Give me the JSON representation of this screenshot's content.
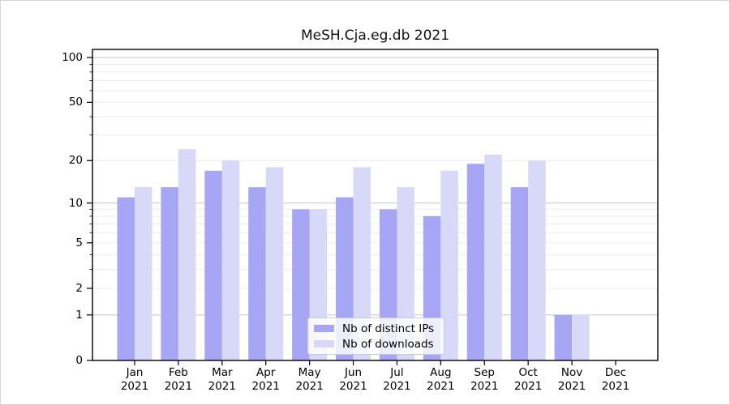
{
  "window": {
    "background": "#ffffff",
    "border_color": "#d6d6d6"
  },
  "chart_data": {
    "type": "bar",
    "title": "MeSH.Cja.eg.db 2021",
    "year_label": "2021",
    "categories": [
      "Jan",
      "Feb",
      "Mar",
      "Apr",
      "May",
      "Jun",
      "Jul",
      "Aug",
      "Sep",
      "Oct",
      "Nov",
      "Dec"
    ],
    "series": [
      {
        "name": "Nb of distinct IPs",
        "color": "#a6a6f4",
        "values": [
          11,
          13,
          17,
          13,
          9,
          11,
          9,
          8,
          19,
          13,
          1,
          0
        ]
      },
      {
        "name": "Nb of downloads",
        "color": "#d8d8f9",
        "values": [
          13,
          24,
          20,
          18,
          9,
          18,
          13,
          17,
          22,
          20,
          1,
          0
        ]
      }
    ],
    "xlabel": "",
    "ylabel": "",
    "yscale": "log1p",
    "ylim": [
      0,
      113
    ],
    "yticks_labeled": [
      0,
      1,
      2,
      5,
      10,
      20,
      50,
      100
    ],
    "gridlines_major": [
      1,
      10,
      100
    ],
    "gridlines_minor": [
      2,
      3,
      4,
      5,
      6,
      7,
      8,
      9,
      20,
      30,
      40,
      50,
      60,
      70,
      80,
      90
    ],
    "grid": "horizontal",
    "legend_position": "inside lower-center",
    "colors": {
      "axis": "#000000",
      "grid_major": "#c4c4c4",
      "grid_minor": "#ececec",
      "text": "#000000"
    }
  }
}
